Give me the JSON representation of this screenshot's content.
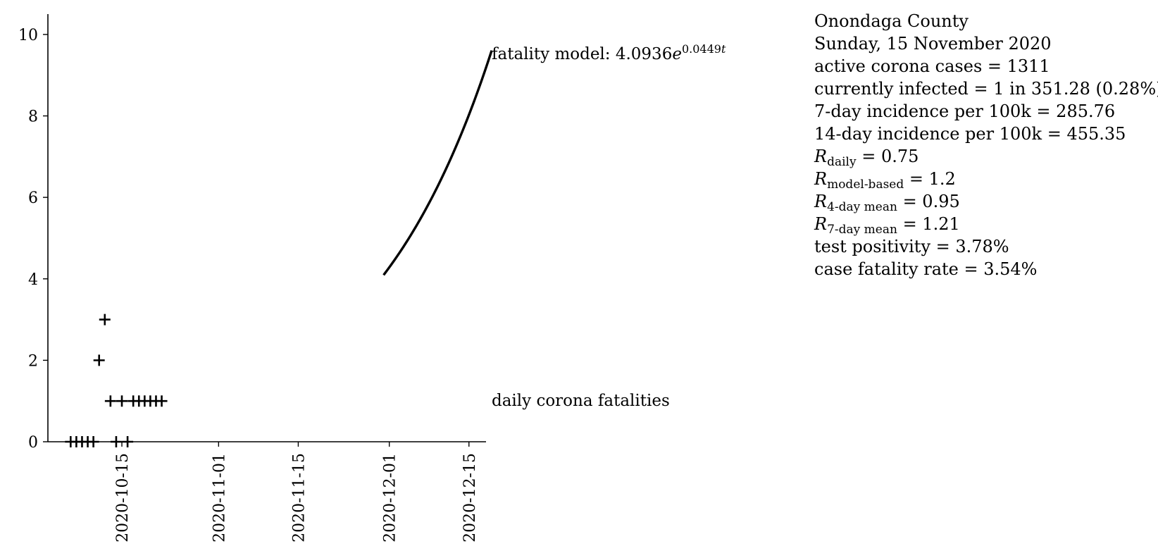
{
  "chart_data": {
    "type": "scatter",
    "title": "",
    "xlabel": "",
    "ylabel": "",
    "x_axis": {
      "type": "date",
      "range": [
        "2020-10-02",
        "2020-12-18"
      ],
      "ticks": [
        "2020-10-15",
        "2020-11-01",
        "2020-11-15",
        "2020-12-01",
        "2020-12-15"
      ]
    },
    "y_axis": {
      "range": [
        0,
        10.5
      ],
      "ticks": [
        "0",
        "2",
        "4",
        "6",
        "8",
        "10"
      ]
    },
    "series": [
      {
        "name": "daily corona fatalities",
        "type": "scatter",
        "marker": "plus",
        "color": "#000000",
        "points": [
          {
            "x": "2020-10-06",
            "y": 0
          },
          {
            "x": "2020-10-07",
            "y": 0
          },
          {
            "x": "2020-10-08",
            "y": 0
          },
          {
            "x": "2020-10-09",
            "y": 0
          },
          {
            "x": "2020-10-10",
            "y": 0
          },
          {
            "x": "2020-10-11",
            "y": 2
          },
          {
            "x": "2020-10-12",
            "y": 3
          },
          {
            "x": "2020-10-13",
            "y": 1
          },
          {
            "x": "2020-10-14",
            "y": 0
          },
          {
            "x": "2020-10-15",
            "y": 1
          },
          {
            "x": "2020-10-16",
            "y": 0
          },
          {
            "x": "2020-10-17",
            "y": 1
          },
          {
            "x": "2020-10-18",
            "y": 1
          },
          {
            "x": "2020-10-19",
            "y": 1
          },
          {
            "x": "2020-10-20",
            "y": 1
          },
          {
            "x": "2020-10-21",
            "y": 1
          },
          {
            "x": "2020-10-22",
            "y": 1
          }
        ]
      },
      {
        "name": "fatality model",
        "type": "line",
        "color": "#000000",
        "formula": {
          "a": 4.0936,
          "b": 0.0449
        },
        "start": "2020-11-30",
        "end": "2020-12-19",
        "start_value": 4.0936
      }
    ],
    "annotations": {
      "model_prefix": "fatality model: 4.0936",
      "model_base": "e",
      "model_exponent": "0.0449",
      "model_exponent_var": "t",
      "fatalities_label": "daily corona fatalities"
    }
  },
  "stats": {
    "county": "Onondaga County",
    "date": "Sunday, 15 November 2020",
    "active_cases": "active corona cases = 1311",
    "currently_infected": "currently infected = 1 in 351.28 (0.28%)",
    "incidence_7": "7-day incidence per 100k = 285.76",
    "incidence_14": "14-day incidence per 100k = 455.35",
    "r_symbol": "R",
    "r_daily_sub": "daily",
    "r_daily_val": " = 0.75",
    "r_model_sub": "model-based",
    "r_model_val": " = 1.2",
    "r_4day_sub": "4-day mean",
    "r_4day_val": " = 0.95",
    "r_7day_sub": "7-day mean",
    "r_7day_val": " = 1.21",
    "test_positivity": "test positivity = 3.78%",
    "case_fatality": "case fatality rate = 3.54%"
  }
}
